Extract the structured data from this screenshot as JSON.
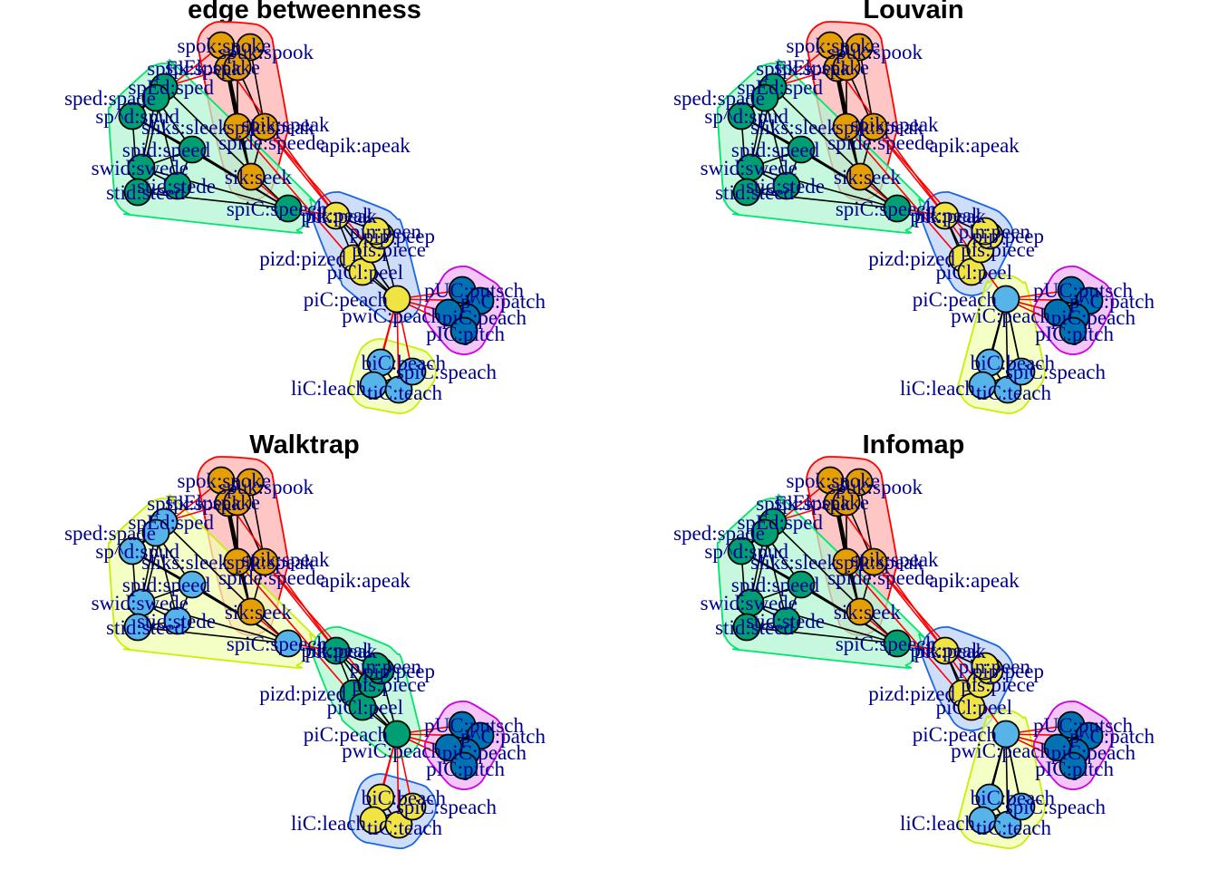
{
  "panels": [
    {
      "id": "eb",
      "title": "edge betweenness",
      "membership": [
        0,
        0,
        0,
        0,
        0,
        0,
        0,
        1,
        1,
        1,
        1,
        1,
        1,
        1,
        1,
        2,
        2,
        2,
        2,
        2,
        2,
        2,
        3,
        3,
        3,
        3,
        3,
        4,
        4,
        4,
        4
      ],
      "hub_group": 2
    },
    {
      "id": "lv",
      "title": "Louvain",
      "membership": [
        0,
        0,
        0,
        0,
        0,
        0,
        0,
        1,
        1,
        1,
        1,
        1,
        1,
        1,
        1,
        2,
        2,
        2,
        2,
        2,
        2,
        2,
        3,
        3,
        3,
        3,
        3,
        4,
        4,
        4,
        4
      ],
      "hub_group": 4
    },
    {
      "id": "wt",
      "title": "Walktrap",
      "membership": [
        0,
        0,
        0,
        0,
        0,
        0,
        0,
        1,
        1,
        1,
        1,
        1,
        1,
        1,
        1,
        2,
        2,
        2,
        2,
        2,
        2,
        2,
        3,
        3,
        3,
        3,
        3,
        4,
        4,
        4,
        4
      ],
      "hub_group": 2
    },
    {
      "id": "im",
      "title": "Infomap",
      "membership": [
        0,
        0,
        0,
        0,
        0,
        0,
        0,
        1,
        1,
        1,
        1,
        1,
        1,
        1,
        1,
        2,
        2,
        2,
        2,
        2,
        2,
        2,
        3,
        3,
        3,
        3,
        3,
        4,
        4,
        4,
        4
      ],
      "hub_group": 4
    }
  ],
  "group_colors": {
    "eb": {
      "vertex": [
        "#E69F00",
        "#009E73",
        "#F0E442",
        "#0072B2",
        "#56B4E9"
      ],
      "fill": [
        "#FFB3B3",
        "#B3F5D1",
        "#BFD3F5",
        "#F0B3F5",
        "#F0FFB3"
      ],
      "stroke": [
        "#FF0000",
        "#00E56B",
        "#1A66E6",
        "#CC00E0",
        "#C8F000"
      ]
    },
    "lv": {
      "vertex": [
        "#E69F00",
        "#009E73",
        "#F0E442",
        "#0072B2",
        "#56B4E9"
      ],
      "fill": [
        "#FFB3B3",
        "#B3F5D1",
        "#BFD3F5",
        "#F0B3F5",
        "#F0FFB3"
      ],
      "stroke": [
        "#FF0000",
        "#00E56B",
        "#1A66E6",
        "#CC00E0",
        "#C8F000"
      ]
    },
    "wt": {
      "vertex": [
        "#E69F00",
        "#56B4E9",
        "#009E73",
        "#0072B2",
        "#F0E442"
      ],
      "fill": [
        "#FFB3B3",
        "#F0FFB3",
        "#B3F5D1",
        "#F0B3F5",
        "#BFD3F5"
      ],
      "stroke": [
        "#FF0000",
        "#C8F000",
        "#00E56B",
        "#CC00E0",
        "#1A66E6"
      ]
    },
    "im": {
      "vertex": [
        "#E69F00",
        "#009E73",
        "#F0E442",
        "#0072B2",
        "#56B4E9"
      ],
      "fill": [
        "#FFB3B3",
        "#B3F5D1",
        "#BFD3F5",
        "#F0B3F5",
        "#F0FFB3"
      ],
      "stroke": [
        "#FF0000",
        "#00E56B",
        "#1A66E6",
        "#CC00E0",
        "#C8F000"
      ]
    }
  },
  "vertex_labels": [
    "spok:spoke",
    "spuk:spook",
    "spEk:speak",
    "spEk:spake",
    "sliks:sleek",
    "spik:speak",
    "sik:seek",
    "spEd:sped",
    "sped:spade",
    "sp^d:spud",
    "spid:speed",
    "spiC:speech",
    "swid:swede",
    "stid:steed",
    "stid:stede",
    "pik:peak",
    "piC:peach",
    "pizd:pized",
    "piCl:peel",
    "pis:piece",
    "pip:peep",
    "pin:peen",
    "pUC:putsch",
    "p^C:patch",
    "piC:peach",
    "pwiC:peach",
    "pIC:pitch",
    "biC:beach",
    "liC:leach",
    "tiC:teach",
    "spiC:speach"
  ],
  "extra_labels": [
    "spik:speak",
    "spide:speede",
    "apik:apeak",
    "pik:peak"
  ]
}
